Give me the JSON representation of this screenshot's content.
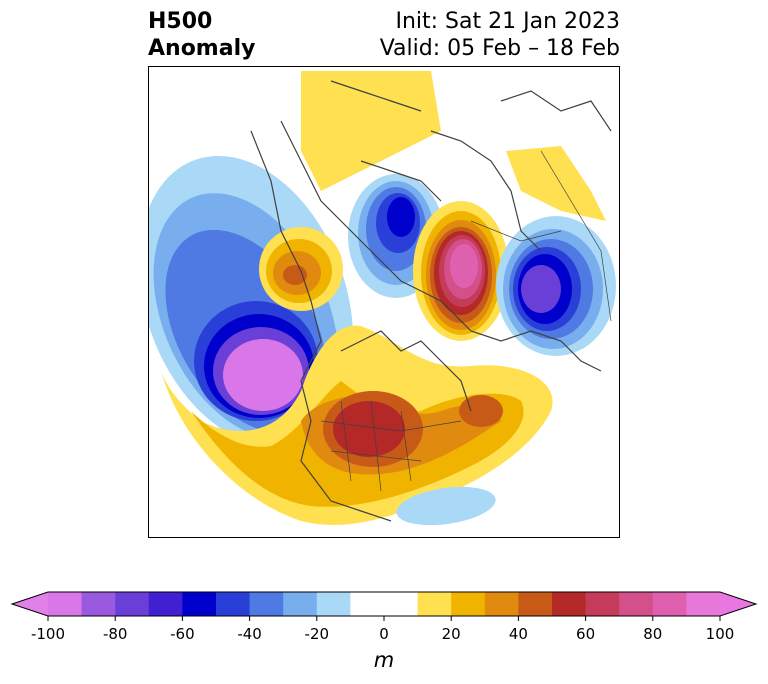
{
  "title": {
    "left_line1": "H500",
    "left_line2": "Anomaly",
    "right_line1": "Init: Sat 21 Jan 2023",
    "right_line2": "Valid: 05 Feb – 18 Feb"
  },
  "colorbar": {
    "unit": "m",
    "levels": [
      -100,
      -90,
      -80,
      -70,
      -60,
      -50,
      -40,
      -30,
      -20,
      -10,
      10,
      20,
      30,
      40,
      50,
      60,
      70,
      80,
      90,
      100
    ],
    "colors": [
      "#d977e8",
      "#9b59e0",
      "#6a3fd8",
      "#4020d0",
      "#0000cc",
      "#2a3fd8",
      "#4f79e3",
      "#79aeee",
      "#aad8f7",
      "#ffffff",
      "#ffe050",
      "#f0b400",
      "#e08a10",
      "#c85a18",
      "#b42828",
      "#c43c5a",
      "#d4508a",
      "#e060b0",
      "#e878d8"
    ],
    "under_color": "#e080e8",
    "over_color": "#e878e0",
    "tick_labels": [
      "-100",
      "-80",
      "-60",
      "-40",
      "-20",
      "0",
      "20",
      "40",
      "60",
      "80",
      "100"
    ],
    "tick_values": [
      -100,
      -80,
      -60,
      -40,
      -20,
      0,
      20,
      40,
      60,
      80,
      100
    ],
    "extend": "both"
  },
  "map": {
    "projection": "north-polar-stereographic",
    "coastline_color": "#404040",
    "features": [
      "coastlines",
      "country-borders",
      "us-state-borders"
    ]
  }
}
